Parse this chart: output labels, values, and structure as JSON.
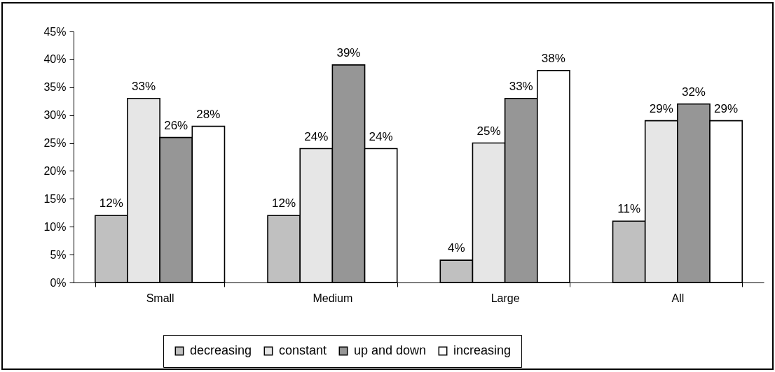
{
  "chart_data": {
    "type": "bar",
    "categories": [
      "Small",
      "Medium",
      "Large",
      "All"
    ],
    "series": [
      {
        "name": "decreasing",
        "color": "#c0c0c0",
        "values": [
          12,
          12,
          4,
          11
        ],
        "value_labels": [
          "12%",
          "12%",
          "4%",
          "11%"
        ]
      },
      {
        "name": "constant",
        "color": "#e6e6e6",
        "values": [
          33,
          24,
          25,
          29
        ],
        "value_labels": [
          "33%",
          "24%",
          "25%",
          "29%"
        ]
      },
      {
        "name": "up and down",
        "color": "#969696",
        "values": [
          26,
          39,
          33,
          32
        ],
        "value_labels": [
          "26%",
          "39%",
          "33%",
          "32%"
        ]
      },
      {
        "name": "increasing",
        "color": "#ffffff",
        "values": [
          28,
          24,
          38,
          29
        ],
        "value_labels": [
          "28%",
          "24%",
          "38%",
          "29%"
        ]
      }
    ],
    "ylim": [
      0,
      45
    ],
    "yticks": [
      {
        "value": 0,
        "label": "0%"
      },
      {
        "value": 5,
        "label": "5%"
      },
      {
        "value": 10,
        "label": "10%"
      },
      {
        "value": 15,
        "label": "15%"
      },
      {
        "value": 20,
        "label": "20%"
      },
      {
        "value": 25,
        "label": "25%"
      },
      {
        "value": 30,
        "label": "30%"
      },
      {
        "value": 35,
        "label": "35%"
      },
      {
        "value": 40,
        "label": "40%"
      },
      {
        "value": 45,
        "label": "45%"
      }
    ],
    "grid": false,
    "legend": "bottom"
  }
}
